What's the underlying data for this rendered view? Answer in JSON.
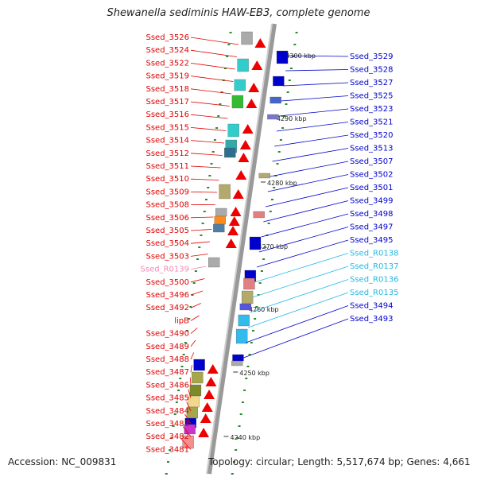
{
  "title": "Shewanella sediminis HAW-EB3, complete genome",
  "footer": {
    "accession": "Accession: NC_009831",
    "summary": "Topology: circular; Length: 5,517,674 bp; Genes: 4,661"
  },
  "ticks": [
    "4300 kbp",
    "4290 kbp",
    "4280 kbp",
    "4270 kbp",
    "4260 kbp",
    "4250 kbp",
    "4240 kbp"
  ],
  "left_labels": [
    {
      "text": "Ssed_3526",
      "color": "#e00000"
    },
    {
      "text": "Ssed_3524",
      "color": "#e00000"
    },
    {
      "text": "Ssed_3522",
      "color": "#e00000"
    },
    {
      "text": "Ssed_3519",
      "color": "#e00000"
    },
    {
      "text": "Ssed_3518",
      "color": "#e00000"
    },
    {
      "text": "Ssed_3517",
      "color": "#e00000"
    },
    {
      "text": "Ssed_3516",
      "color": "#e00000"
    },
    {
      "text": "Ssed_3515",
      "color": "#e00000"
    },
    {
      "text": "Ssed_3514",
      "color": "#e00000"
    },
    {
      "text": "Ssed_3512",
      "color": "#e00000"
    },
    {
      "text": "Ssed_3511",
      "color": "#e00000"
    },
    {
      "text": "Ssed_3510",
      "color": "#e00000"
    },
    {
      "text": "Ssed_3509",
      "color": "#e00000"
    },
    {
      "text": "Ssed_3508",
      "color": "#e00000"
    },
    {
      "text": "Ssed_3506",
      "color": "#e00000"
    },
    {
      "text": "Ssed_3505",
      "color": "#e00000"
    },
    {
      "text": "Ssed_3504",
      "color": "#e00000"
    },
    {
      "text": "Ssed_3503",
      "color": "#e00000"
    },
    {
      "text": "Ssed_R0139",
      "color": "#f08ab8"
    },
    {
      "text": "Ssed_3500",
      "color": "#e00000"
    },
    {
      "text": "Ssed_3496",
      "color": "#e00000"
    },
    {
      "text": "Ssed_3492",
      "color": "#e00000"
    },
    {
      "text": "lipB",
      "color": "#e00000"
    },
    {
      "text": "Ssed_3490",
      "color": "#e00000"
    },
    {
      "text": "Ssed_3489",
      "color": "#e00000"
    },
    {
      "text": "Ssed_3488",
      "color": "#e00000"
    },
    {
      "text": "Ssed_3487",
      "color": "#e00000"
    },
    {
      "text": "Ssed_3486",
      "color": "#e00000"
    },
    {
      "text": "Ssed_3485",
      "color": "#e00000"
    },
    {
      "text": "Ssed_3484",
      "color": "#e00000"
    },
    {
      "text": "Ssed_3483",
      "color": "#e00000"
    },
    {
      "text": "Ssed_3482",
      "color": "#e00000"
    },
    {
      "text": "Ssed_3481",
      "color": "#e00000"
    }
  ],
  "right_labels": [
    {
      "text": "Ssed_3529",
      "color": "#0000cc"
    },
    {
      "text": "Ssed_3528",
      "color": "#0000cc"
    },
    {
      "text": "Ssed_3527",
      "color": "#0000cc"
    },
    {
      "text": "Ssed_3525",
      "color": "#0000cc"
    },
    {
      "text": "Ssed_3523",
      "color": "#0000cc"
    },
    {
      "text": "Ssed_3521",
      "color": "#0000cc"
    },
    {
      "text": "Ssed_3520",
      "color": "#0000cc"
    },
    {
      "text": "Ssed_3513",
      "color": "#0000cc"
    },
    {
      "text": "Ssed_3507",
      "color": "#0000cc"
    },
    {
      "text": "Ssed_3502",
      "color": "#0000cc"
    },
    {
      "text": "Ssed_3501",
      "color": "#0000cc"
    },
    {
      "text": "Ssed_3499",
      "color": "#0000cc"
    },
    {
      "text": "Ssed_3498",
      "color": "#0000cc"
    },
    {
      "text": "Ssed_3497",
      "color": "#0000cc"
    },
    {
      "text": "Ssed_3495",
      "color": "#0000cc"
    },
    {
      "text": "Ssed_R0138",
      "color": "#22b8e0"
    },
    {
      "text": "Ssed_R0137",
      "color": "#22b8e0"
    },
    {
      "text": "Ssed_R0136",
      "color": "#22b8e0"
    },
    {
      "text": "Ssed_R0135",
      "color": "#22b8e0"
    },
    {
      "text": "Ssed_3494",
      "color": "#0000cc"
    },
    {
      "text": "Ssed_3493",
      "color": "#0000cc"
    }
  ]
}
